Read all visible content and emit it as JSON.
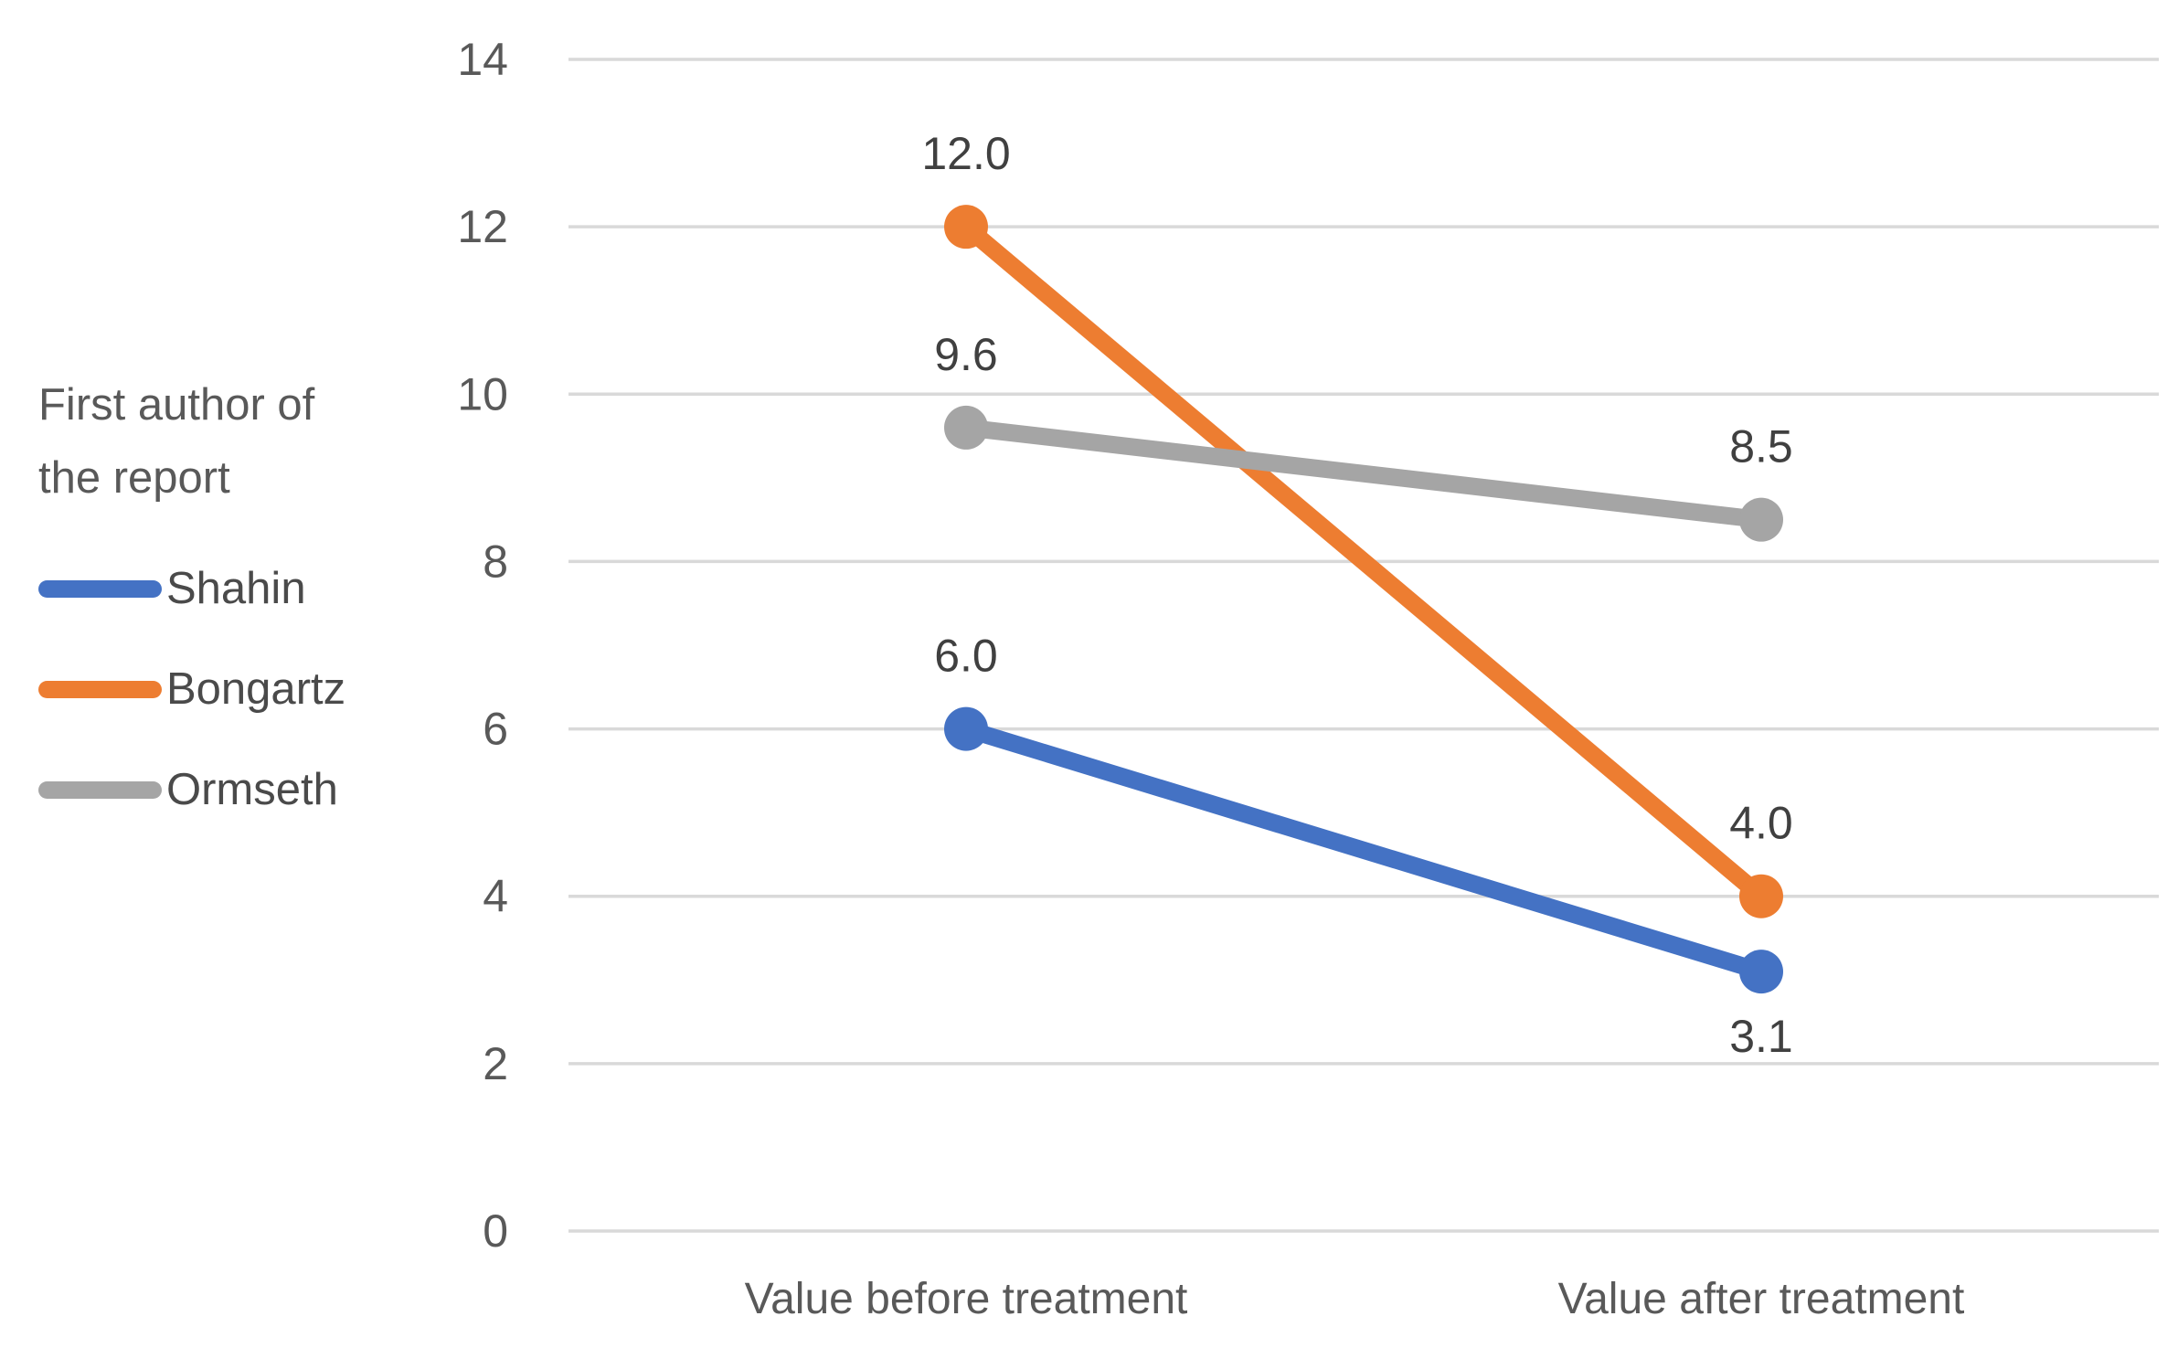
{
  "legend": {
    "title": "First author of the report",
    "title_lines": [
      "First author of",
      "the report"
    ]
  },
  "chart_data": {
    "type": "line",
    "title": "",
    "categories": [
      "Value before treatment",
      "Value after treatment"
    ],
    "series": [
      {
        "name": "Shahin",
        "color": "#4472C4",
        "values": [
          6.0,
          3.1
        ],
        "point_labels": [
          "6.0",
          "3.1"
        ],
        "label_positions": [
          "above",
          "below"
        ]
      },
      {
        "name": "Bongartz",
        "color": "#ED7D31",
        "values": [
          12.0,
          4.0
        ],
        "point_labels": [
          "12.0",
          "4.0"
        ],
        "label_positions": [
          "above",
          "above"
        ]
      },
      {
        "name": "Ormseth",
        "color": "#A5A5A5",
        "values": [
          9.6,
          8.5
        ],
        "point_labels": [
          "9.6",
          "8.5"
        ],
        "label_positions": [
          "above",
          "above"
        ]
      }
    ],
    "y_axis": {
      "min": 0,
      "max": 14,
      "step": 2,
      "tick_labels": [
        "0",
        "2",
        "4",
        "6",
        "8",
        "10",
        "12",
        "14"
      ]
    },
    "grid": true,
    "legend_position": "left",
    "legend_title": "First author of the report",
    "colors": {
      "gridline": "#D9D9D9",
      "axis_text": "#595959",
      "data_label_text": "#404040",
      "legend_text": "#4A4A4A"
    }
  }
}
